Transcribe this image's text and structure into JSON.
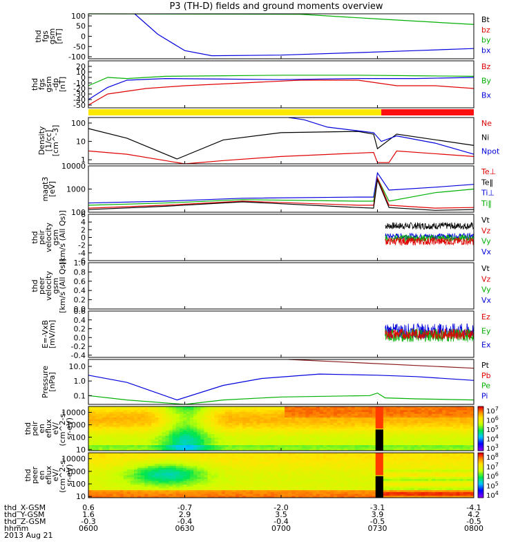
{
  "chart_data": {
    "type": "line",
    "title": "P3 (TH-D) fields and ground moments overview",
    "x": {
      "time_labels": [
        "0600",
        "0630",
        "0700",
        "0730",
        "0800"
      ],
      "date": "2013 Aug 21"
    },
    "ephemeris": {
      "rows": [
        {
          "label": "thd_X-GSM",
          "values": [
            "0.6",
            "-0.7",
            "-2.0",
            "-3.1",
            "-4.1"
          ]
        },
        {
          "label": "thd_Y-GSM",
          "values": [
            "1.6",
            "2.9",
            "3.5",
            "3.9",
            "4.2"
          ]
        },
        {
          "label": "thd_Z-GSM",
          "values": [
            "-0.3",
            "-0.4",
            "-0.4",
            "-0.5",
            "-0.5"
          ]
        },
        {
          "label": "hhmm",
          "values": [
            "0600",
            "0630",
            "0700",
            "0730",
            "0800"
          ]
        }
      ]
    },
    "panels": [
      {
        "id": "fgs",
        "ylabel": [
          "thd",
          "fgs",
          "gsm",
          "[nT]"
        ],
        "ylim": [
          -110,
          110
        ],
        "ticks": [
          "100",
          "50",
          "0",
          "-50",
          "-100"
        ],
        "tick_values": [
          100,
          50,
          0,
          -50,
          -100
        ],
        "legend": [
          {
            "label": "Bt",
            "color": "#000000"
          },
          {
            "label": "bz",
            "color": "#e00000"
          },
          {
            "label": "by",
            "color": "#00b000"
          },
          {
            "label": "bx",
            "color": "#0000dd"
          }
        ],
        "series": [
          {
            "name": "by",
            "color": "#00b000",
            "x": [
              0,
              0.55,
              0.75,
              1
            ],
            "y": [
              110,
              108,
              85,
              58
            ]
          },
          {
            "name": "bx",
            "color": "#0000dd",
            "x": [
              0.12,
              0.18,
              0.25,
              0.32,
              0.5,
              0.7,
              0.85,
              1
            ],
            "y": [
              110,
              10,
              -70,
              -95,
              -92,
              -80,
              -70,
              -60
            ]
          }
        ]
      },
      {
        "id": "fgs_dp",
        "ylabel": [
          "thd",
          "fgs",
          "gsm",
          "-dp",
          "[nT]"
        ],
        "ylim": [
          -55,
          30
        ],
        "ticks": [
          "20",
          "10",
          "0",
          "-10",
          "-20",
          "-30",
          "-40",
          "-50"
        ],
        "tick_values": [
          20,
          10,
          0,
          -10,
          -20,
          -30,
          -40,
          -50
        ],
        "legend": [
          {
            "label": "Bz",
            "color": "#e00000"
          },
          {
            "label": "By",
            "color": "#00b000"
          },
          {
            "label": "Bx",
            "color": "#0000dd"
          }
        ],
        "series": [
          {
            "name": "By",
            "color": "#00b000",
            "x": [
              0,
              0.05,
              0.1,
              0.2,
              0.35,
              0.5,
              0.7,
              0.85,
              1
            ],
            "y": [
              -15,
              0,
              -2,
              2,
              3,
              4,
              4,
              3,
              2
            ]
          },
          {
            "name": "Bz",
            "color": "#e00000",
            "x": [
              0,
              0.05,
              0.1,
              0.15,
              0.25,
              0.4,
              0.55,
              0.7,
              0.8,
              0.9,
              1
            ],
            "y": [
              -50,
              -30,
              -25,
              -20,
              -15,
              -10,
              -5,
              -5,
              -15,
              -15,
              -20
            ]
          },
          {
            "name": "Bx",
            "color": "#0000dd",
            "x": [
              0,
              0.05,
              0.1,
              0.2,
              0.35,
              0.5,
              0.7,
              0.85,
              1
            ],
            "y": [
              -40,
              -18,
              -5,
              -2,
              -3,
              -4,
              -2,
              -2,
              0
            ]
          }
        ]
      },
      {
        "id": "density",
        "ylabel": [
          "Density",
          "[1/cc]",
          "[cm^-3]"
        ],
        "log": true,
        "ylim": [
          0.6,
          200
        ],
        "ticks": [
          "100",
          "10",
          "1"
        ],
        "tick_values": [
          100,
          10,
          1
        ],
        "legend": [
          {
            "label": "Ne",
            "color": "#e00000"
          },
          {
            "label": "Ni",
            "color": "#000000"
          },
          {
            "label": "Npot",
            "color": "#0000dd"
          }
        ],
        "series": [
          {
            "name": "Ni",
            "color": "#000000",
            "x": [
              0,
              0.1,
              0.23,
              0.35,
              0.5,
              0.7,
              0.74,
              0.75,
              0.8,
              1
            ],
            "y": [
              50,
              15,
              1.1,
              12,
              30,
              35,
              25,
              4,
              25,
              6
            ]
          },
          {
            "name": "Ne",
            "color": "#e00000",
            "x": [
              0,
              0.1,
              0.25,
              0.35,
              0.5,
              0.74,
              0.75,
              0.78,
              0.8,
              1
            ],
            "y": [
              3,
              2,
              0.6,
              0.9,
              1.5,
              2.5,
              0.7,
              0.7,
              3,
              1.5
            ]
          },
          {
            "name": "Npot",
            "color": "#0000dd",
            "x": [
              0.52,
              0.56,
              0.62,
              0.74,
              0.76,
              0.8,
              0.9,
              1
            ],
            "y": [
              200,
              150,
              60,
              30,
              10,
              20,
              8,
              2
            ]
          }
        ]
      },
      {
        "id": "temp",
        "ylabel": [
          "magt3",
          "[eV]"
        ],
        "log": true,
        "ylim": [
          100,
          10000
        ],
        "ticks": [
          "10000",
          "1000",
          "100"
        ],
        "tick_values": [
          10000,
          1000,
          100
        ],
        "legend": [
          {
            "label": "Te⊥",
            "color": "#e00000"
          },
          {
            "label": "Te‖",
            "color": "#000000"
          },
          {
            "label": "Ti⊥",
            "color": "#0000dd"
          },
          {
            "label": "Ti‖",
            "color": "#00b000"
          }
        ],
        "series": [
          {
            "name": "Ti⊥",
            "color": "#0000dd",
            "x": [
              0,
              0.2,
              0.4,
              0.7,
              0.74,
              0.75,
              0.78,
              0.9,
              1
            ],
            "y": [
              250,
              300,
              400,
              450,
              450,
              5000,
              900,
              1200,
              1600
            ]
          },
          {
            "name": "Ti‖",
            "color": "#00b000",
            "x": [
              0,
              0.2,
              0.4,
              0.7,
              0.74,
              0.75,
              0.78,
              0.9,
              1
            ],
            "y": [
              200,
              250,
              350,
              300,
              300,
              3000,
              300,
              700,
              1000
            ]
          },
          {
            "name": "Te⊥",
            "color": "#e00000",
            "x": [
              0,
              0.2,
              0.4,
              0.7,
              0.74,
              0.75,
              0.78,
              0.9,
              1
            ],
            "y": [
              150,
              200,
              300,
              200,
              200,
              3000,
              200,
              150,
              160
            ]
          },
          {
            "name": "Te‖",
            "color": "#000000",
            "x": [
              0,
              0.2,
              0.4,
              0.7,
              0.74,
              0.75,
              0.78,
              0.9,
              1
            ],
            "y": [
              130,
              180,
              280,
              160,
              150,
              2500,
              160,
              120,
              130
            ]
          }
        ]
      },
      {
        "id": "vi",
        "ylabel": [
          "thd",
          "peir",
          "velocity",
          "gsm",
          "[km/s (All Qs)]"
        ],
        "ylim": [
          -6,
          6
        ],
        "ticks": [
          "6",
          "4",
          "2",
          "0",
          "-2",
          "-4",
          "-6"
        ],
        "tick_values": [
          6,
          4,
          2,
          0,
          -2,
          -4,
          -6
        ],
        "legend": [
          {
            "label": "Vt",
            "color": "#000000"
          },
          {
            "label": "Vz",
            "color": "#e00000"
          },
          {
            "label": "Vy",
            "color": "#00b000"
          },
          {
            "label": "Vx",
            "color": "#0000dd"
          }
        ],
        "noise": [
          {
            "name": "Vt",
            "color": "#000000",
            "start": 0.77,
            "mean": 3,
            "amp": 0.9
          },
          {
            "name": "Vx",
            "color": "#0000dd",
            "start": 0.77,
            "mean": 0.3,
            "amp": 0.8
          },
          {
            "name": "Vy",
            "color": "#00b000",
            "start": 0.77,
            "mean": -0.2,
            "amp": 0.9
          },
          {
            "name": "Vz",
            "color": "#e00000",
            "start": 0.77,
            "mean": -1.0,
            "amp": 1.0
          }
        ]
      },
      {
        "id": "ve",
        "ylabel": [
          "thd",
          "peer",
          "velocity",
          "gsm",
          "[km/s (All Qs)]"
        ],
        "ylim": [
          0,
          1
        ],
        "ticks": [
          "1.0",
          "0.8",
          "0.6",
          "0.4",
          "0.2",
          "0.0"
        ],
        "tick_values": [
          1,
          0.8,
          0.6,
          0.4,
          0.2,
          0
        ],
        "legend": [
          {
            "label": "Vt",
            "color": "#000000"
          },
          {
            "label": "Vz",
            "color": "#e00000"
          },
          {
            "label": "Vy",
            "color": "#00b000"
          },
          {
            "label": "Vx",
            "color": "#0000dd"
          }
        ]
      },
      {
        "id": "efield",
        "ylabel": [
          "E=-VxB",
          "[mV/m]"
        ],
        "ylim": [
          -0.45,
          0.6
        ],
        "ticks": [
          "0.6",
          "0.4",
          "0.2",
          "0.0",
          "-0.2",
          "-0.4"
        ],
        "tick_values": [
          0.6,
          0.4,
          0.2,
          0,
          -0.2,
          -0.4
        ],
        "legend": [
          {
            "label": "Ez",
            "color": "#e00000"
          },
          {
            "label": "Ey",
            "color": "#00b000"
          },
          {
            "label": "Ex",
            "color": "#0000dd"
          }
        ],
        "noise": [
          {
            "name": "Ex",
            "color": "#0000dd",
            "start": 0.77,
            "mean": 0.15,
            "amp": 0.17
          },
          {
            "name": "Ey",
            "color": "#00b000",
            "start": 0.77,
            "mean": 0.05,
            "amp": 0.15
          },
          {
            "name": "Ez",
            "color": "#e00000",
            "start": 0.77,
            "mean": 0.08,
            "amp": 0.12
          }
        ]
      },
      {
        "id": "pressure",
        "ylabel": [
          "Pressure",
          "[nPa]"
        ],
        "log": true,
        "ylim": [
          0.025,
          30
        ],
        "ticks": [
          "10.0",
          "1.0",
          "0.1"
        ],
        "tick_values": [
          10,
          1,
          0.1
        ],
        "legend": [
          {
            "label": "Pt",
            "color": "#000000"
          },
          {
            "label": "Pb",
            "color": "#e00000"
          },
          {
            "label": "Pe",
            "color": "#00b000"
          },
          {
            "label": "Pi",
            "color": "#0000dd"
          }
        ],
        "series": [
          {
            "name": "Pb",
            "color": "#8b1a1a",
            "x": [
              0.52,
              1
            ],
            "y": [
              30,
              7.5
            ]
          },
          {
            "name": "Pi",
            "color": "#0000dd",
            "x": [
              0,
              0.1,
              0.23,
              0.35,
              0.45,
              0.6,
              0.75,
              0.85,
              1
            ],
            "y": [
              2.5,
              0.8,
              0.05,
              0.5,
              1.5,
              3,
              2.5,
              2,
              1.1
            ]
          },
          {
            "name": "Pe",
            "color": "#00b000",
            "x": [
              0,
              0.1,
              0.25,
              0.35,
              0.5,
              0.73,
              0.75,
              0.77,
              0.85,
              1
            ],
            "y": [
              0.1,
              0.05,
              0.025,
              0.05,
              0.08,
              0.1,
              0.15,
              0.07,
              0.06,
              0.05
            ]
          }
        ]
      },
      {
        "id": "ion_spec",
        "type": "heatmap",
        "ylabel": [
          "thd",
          "peir",
          "en",
          "eflux",
          "eV/",
          "(cm^2-s-",
          "sr-eV)"
        ],
        "ticks": [
          "10000",
          "1000",
          "100",
          "10"
        ],
        "tick_values": [
          10000,
          1000,
          100,
          10
        ],
        "ylim": [
          8,
          30000
        ],
        "log": true,
        "colorbar_labels": [
          "10^7",
          "10^6",
          "10^5",
          "10^4",
          "10^3"
        ]
      },
      {
        "id": "elec_spec",
        "type": "heatmap",
        "ylabel": [
          "thd",
          "peer",
          "en",
          "eflux",
          "eV/",
          "(cm^2-s-",
          "sr-eV)"
        ],
        "ticks": [
          "10000",
          "1000",
          "100",
          "10"
        ],
        "tick_values": [
          10000,
          1000,
          100,
          10
        ],
        "ylim": [
          8,
          30000
        ],
        "log": true,
        "colorbar_labels": [
          "10^8",
          "10^7",
          "10^6",
          "10^5",
          "10^4"
        ]
      }
    ],
    "mode_bar": [
      {
        "from": 0,
        "to": 0.76,
        "color": "#ffe800"
      },
      {
        "from": 0.76,
        "to": 1,
        "color": "#ff1010"
      }
    ]
  }
}
